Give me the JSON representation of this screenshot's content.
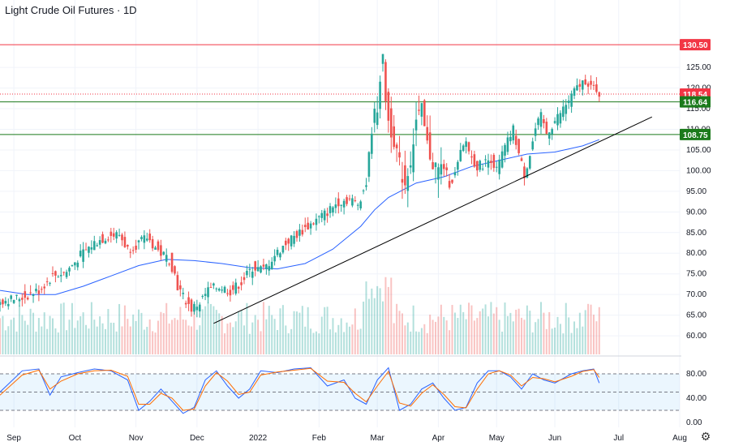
{
  "header": {
    "title": "Light Crude Oil Futures · 1D"
  },
  "colors": {
    "up": "#26a69a",
    "down": "#ef5350",
    "ma": "#2962ff",
    "resistance_line": "#f23645",
    "support_line": "#1b7a1b",
    "trendline": "#000000",
    "stoch_k": "#2962ff",
    "stoch_d": "#ff6d00",
    "stoch_band": "#2196f3"
  },
  "icons": {
    "settings": "gear-icon"
  },
  "chart_data": [
    {
      "type": "candlestick",
      "title": "Light Crude Oil Futures · 1D",
      "ylim": [
        55.5,
        137
      ],
      "xlim": [
        0,
        245
      ],
      "x_ticks": [
        {
          "x": 5,
          "label": "Sep"
        },
        {
          "x": 27,
          "label": "Oct"
        },
        {
          "x": 49,
          "label": "Nov"
        },
        {
          "x": 71,
          "label": "Dec"
        },
        {
          "x": 93,
          "label": "2022"
        },
        {
          "x": 115,
          "label": "Feb"
        },
        {
          "x": 136,
          "label": "Mar"
        },
        {
          "x": 158,
          "label": "Apr"
        },
        {
          "x": 179,
          "label": "May"
        },
        {
          "x": 200,
          "label": "Jun"
        },
        {
          "x": 223,
          "label": "Jul"
        },
        {
          "x": 245,
          "label": "Aug"
        }
      ],
      "y_ticks": [
        "60.00",
        "65.00",
        "70.00",
        "75.00",
        "80.00",
        "85.00",
        "90.00",
        "95.00",
        "100.00",
        "105.00",
        "110.00",
        "115.00",
        "120.00",
        "125.00"
      ],
      "horizontal_levels": [
        {
          "value": 130.5,
          "label": "130.50",
          "color": "#f23645",
          "style": "solid"
        },
        {
          "value": 118.54,
          "label": "118.54",
          "color": "#f23645",
          "style": "dotted"
        },
        {
          "value": 116.64,
          "label": "116.64",
          "color": "#1b7a1b",
          "style": "solid"
        },
        {
          "value": 108.75,
          "label": "108.75",
          "color": "#1b7a1b",
          "style": "solid"
        }
      ],
      "trendline": {
        "from": [
          77,
          63.0
        ],
        "to": [
          235,
          113.0
        ]
      },
      "price_path": [
        [
          0,
          68.5
        ],
        [
          5,
          68.8
        ],
        [
          10,
          69.5
        ],
        [
          15,
          71.0
        ],
        [
          20,
          74.5
        ],
        [
          25,
          75.5
        ],
        [
          30,
          79.5
        ],
        [
          35,
          82.5
        ],
        [
          40,
          84.2
        ],
        [
          44,
          84.5
        ],
        [
          47,
          81.0
        ],
        [
          50,
          82.0
        ],
        [
          54,
          83.8
        ],
        [
          58,
          80.5
        ],
        [
          62,
          78.5
        ],
        [
          64,
          74.8
        ],
        [
          65,
          72.0
        ],
        [
          67,
          69.5
        ],
        [
          70,
          66.5
        ],
        [
          73,
          68.0
        ],
        [
          76,
          71.0
        ],
        [
          80,
          72.0
        ],
        [
          84,
          70.8
        ],
        [
          88,
          73.0
        ],
        [
          92,
          76.5
        ],
        [
          96,
          76.0
        ],
        [
          100,
          79.5
        ],
        [
          105,
          83.0
        ],
        [
          110,
          85.5
        ],
        [
          115,
          88.0
        ],
        [
          119,
          90.0
        ],
        [
          123,
          92.5
        ],
        [
          127,
          93.0
        ],
        [
          130,
          92.0
        ],
        [
          133,
          97.0
        ],
        [
          135,
          110.0
        ],
        [
          137,
          116.0
        ],
        [
          138,
          123.0
        ],
        [
          139,
          126.0
        ],
        [
          140,
          118.0
        ],
        [
          141,
          112.0
        ],
        [
          143,
          108.0
        ],
        [
          145,
          101.0
        ],
        [
          147,
          97.0
        ],
        [
          149,
          103.0
        ],
        [
          151,
          112.0
        ],
        [
          153,
          114.0
        ],
        [
          155,
          106.0
        ],
        [
          157,
          102.0
        ],
        [
          159,
          100.0
        ],
        [
          161,
          101.0
        ],
        [
          163,
          97.0
        ],
        [
          165,
          99.0
        ],
        [
          167,
          104.0
        ],
        [
          169,
          107.0
        ],
        [
          171,
          103.0
        ],
        [
          173,
          101.0
        ],
        [
          176,
          102.0
        ],
        [
          178,
          103.0
        ],
        [
          180,
          100.0
        ],
        [
          182,
          104.0
        ],
        [
          184,
          107.0
        ],
        [
          186,
          110.0
        ],
        [
          188,
          104.0
        ],
        [
          190,
          99.0
        ],
        [
          192,
          104.0
        ],
        [
          194,
          110.0
        ],
        [
          196,
          113.0
        ],
        [
          198,
          109.0
        ],
        [
          200,
          111.0
        ],
        [
          203,
          114.0
        ],
        [
          206,
          117.0
        ],
        [
          209,
          120.0
        ],
        [
          212,
          122.0
        ],
        [
          214,
          120.5
        ],
        [
          216,
          118.5
        ]
      ],
      "moving_average": [
        [
          0,
          71.0
        ],
        [
          10,
          70.0
        ],
        [
          20,
          70.0
        ],
        [
          30,
          72.0
        ],
        [
          40,
          74.5
        ],
        [
          50,
          77.0
        ],
        [
          60,
          78.5
        ],
        [
          70,
          78.2
        ],
        [
          80,
          77.5
        ],
        [
          90,
          76.5
        ],
        [
          100,
          76.2
        ],
        [
          110,
          77.5
        ],
        [
          120,
          81.0
        ],
        [
          130,
          86.5
        ],
        [
          135,
          90.5
        ],
        [
          140,
          93.5
        ],
        [
          150,
          97.0
        ],
        [
          160,
          98.5
        ],
        [
          170,
          101.0
        ],
        [
          180,
          102.5
        ],
        [
          190,
          104.0
        ],
        [
          200,
          104.5
        ],
        [
          210,
          106.0
        ],
        [
          216,
          107.5
        ]
      ]
    },
    {
      "type": "line",
      "title": "",
      "ylim": [
        0,
        100
      ],
      "y_ticks": [
        "0.00",
        "40.00",
        "80.00"
      ],
      "levels": [
        80,
        50,
        20
      ],
      "series": [
        {
          "values": [
            [
              0,
              50
            ],
            [
              8,
              85
            ],
            [
              14,
              88
            ],
            [
              18,
              45
            ],
            [
              22,
              75
            ],
            [
              28,
              82
            ],
            [
              34,
              88
            ],
            [
              40,
              85
            ],
            [
              46,
              70
            ],
            [
              50,
              20
            ],
            [
              54,
              35
            ],
            [
              58,
              55
            ],
            [
              62,
              35
            ],
            [
              66,
              15
            ],
            [
              70,
              25
            ],
            [
              74,
              70
            ],
            [
              78,
              85
            ],
            [
              82,
              60
            ],
            [
              86,
              40
            ],
            [
              90,
              55
            ],
            [
              94,
              85
            ],
            [
              100,
              82
            ],
            [
              106,
              88
            ],
            [
              112,
              90
            ],
            [
              118,
              60
            ],
            [
              124,
              70
            ],
            [
              128,
              40
            ],
            [
              132,
              30
            ],
            [
              136,
              70
            ],
            [
              140,
              90
            ],
            [
              144,
              20
            ],
            [
              148,
              30
            ],
            [
              152,
              55
            ],
            [
              156,
              65
            ],
            [
              160,
              40
            ],
            [
              164,
              20
            ],
            [
              168,
              25
            ],
            [
              172,
              65
            ],
            [
              176,
              85
            ],
            [
              180,
              85
            ],
            [
              184,
              75
            ],
            [
              188,
              55
            ],
            [
              192,
              80
            ],
            [
              196,
              70
            ],
            [
              200,
              65
            ],
            [
              206,
              80
            ],
            [
              210,
              85
            ],
            [
              214,
              88
            ],
            [
              216,
              65
            ]
          ]
        },
        {
          "values": [
            [
              0,
              45
            ],
            [
              8,
              78
            ],
            [
              14,
              86
            ],
            [
              18,
              55
            ],
            [
              22,
              68
            ],
            [
              28,
              80
            ],
            [
              34,
              85
            ],
            [
              40,
              86
            ],
            [
              46,
              76
            ],
            [
              50,
              30
            ],
            [
              54,
              30
            ],
            [
              58,
              48
            ],
            [
              62,
              40
            ],
            [
              66,
              20
            ],
            [
              70,
              22
            ],
            [
              74,
              60
            ],
            [
              78,
              82
            ],
            [
              82,
              68
            ],
            [
              86,
              46
            ],
            [
              90,
              50
            ],
            [
              94,
              78
            ],
            [
              100,
              83
            ],
            [
              106,
              86
            ],
            [
              112,
              89
            ],
            [
              118,
              68
            ],
            [
              124,
              66
            ],
            [
              128,
              48
            ],
            [
              132,
              34
            ],
            [
              136,
              60
            ],
            [
              140,
              84
            ],
            [
              144,
              32
            ],
            [
              148,
              27
            ],
            [
              152,
              48
            ],
            [
              156,
              62
            ],
            [
              160,
              46
            ],
            [
              164,
              26
            ],
            [
              168,
              24
            ],
            [
              172,
              55
            ],
            [
              176,
              80
            ],
            [
              180,
              85
            ],
            [
              184,
              78
            ],
            [
              188,
              60
            ],
            [
              192,
              74
            ],
            [
              196,
              72
            ],
            [
              200,
              67
            ],
            [
              206,
              76
            ],
            [
              210,
              84
            ],
            [
              214,
              87
            ],
            [
              216,
              74
            ]
          ]
        }
      ]
    }
  ]
}
